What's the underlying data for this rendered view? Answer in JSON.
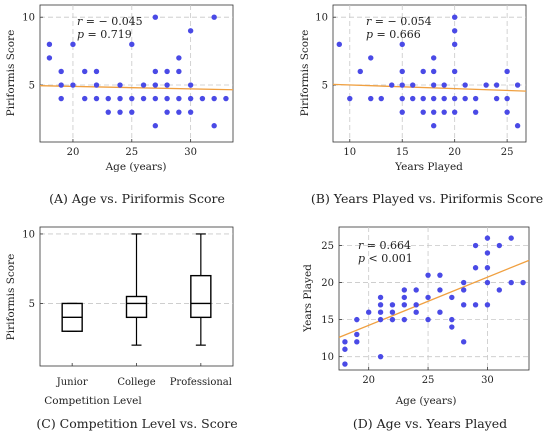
{
  "chart_data": [
    {
      "type": "scatter",
      "caption": "(A) Age vs. Piriformis Score",
      "xlabel": "Age (years)",
      "ylabel": "Piriformis Score",
      "xlim": [
        17.2,
        33.6
      ],
      "ylim": [
        0.8,
        10.9
      ],
      "xticks": [
        20,
        25,
        30
      ],
      "yticks": [
        5,
        10
      ],
      "grid": true,
      "stats": {
        "r_label": "r",
        "r_value": "= − 0.045",
        "p_label": "p",
        "p_value": "= 0.719"
      },
      "trend": {
        "x": [
          17.2,
          33.6
        ],
        "y": [
          4.95,
          4.65
        ]
      },
      "colors": {
        "points": "#4a4ae6",
        "trend": "#f0a040"
      },
      "points": [
        [
          18,
          8
        ],
        [
          18,
          7
        ],
        [
          19,
          6
        ],
        [
          19,
          5
        ],
        [
          19,
          4
        ],
        [
          20,
          8
        ],
        [
          20,
          5
        ],
        [
          21,
          6
        ],
        [
          21,
          4
        ],
        [
          22,
          6
        ],
        [
          22,
          5
        ],
        [
          22,
          4
        ],
        [
          23,
          4
        ],
        [
          23,
          3
        ],
        [
          24,
          5
        ],
        [
          24,
          4
        ],
        [
          24,
          3
        ],
        [
          25,
          4
        ],
        [
          25,
          3
        ],
        [
          25,
          8
        ],
        [
          26,
          5
        ],
        [
          26,
          4
        ],
        [
          27,
          10
        ],
        [
          27,
          6
        ],
        [
          27,
          5
        ],
        [
          27,
          4
        ],
        [
          27,
          2
        ],
        [
          28,
          6
        ],
        [
          28,
          5
        ],
        [
          28,
          4
        ],
        [
          28,
          3
        ],
        [
          29,
          7
        ],
        [
          29,
          6
        ],
        [
          29,
          4
        ],
        [
          29,
          3
        ],
        [
          30,
          9
        ],
        [
          30,
          5
        ],
        [
          30,
          4
        ],
        [
          30,
          3
        ],
        [
          31,
          4
        ],
        [
          32,
          10
        ],
        [
          32,
          4
        ],
        [
          32,
          2
        ],
        [
          33,
          4
        ]
      ]
    },
    {
      "type": "scatter",
      "caption": "(B) Years Played vs. Piriformis Score",
      "xlabel": "Years Played",
      "ylabel": "Piriformis Score",
      "xlim": [
        8.4,
        26.8
      ],
      "ylim": [
        0.8,
        10.9
      ],
      "xticks": [
        10,
        15,
        20,
        25
      ],
      "yticks": [
        5,
        10
      ],
      "grid": true,
      "stats": {
        "r_label": "r",
        "r_value": "= − 0.054",
        "p_label": "p",
        "p_value": "= 0.666"
      },
      "trend": {
        "x": [
          8.4,
          26.8
        ],
        "y": [
          5.05,
          4.55
        ]
      },
      "colors": {
        "points": "#4a4ae6",
        "trend": "#f0a040"
      },
      "points": [
        [
          9,
          8
        ],
        [
          10,
          4
        ],
        [
          11,
          6
        ],
        [
          12,
          7
        ],
        [
          12,
          4
        ],
        [
          13,
          4
        ],
        [
          14,
          5
        ],
        [
          15,
          8
        ],
        [
          15,
          6
        ],
        [
          15,
          5
        ],
        [
          15,
          4
        ],
        [
          15,
          3
        ],
        [
          16,
          5
        ],
        [
          16,
          4
        ],
        [
          17,
          6
        ],
        [
          17,
          4
        ],
        [
          17,
          3
        ],
        [
          18,
          7
        ],
        [
          18,
          6
        ],
        [
          18,
          5
        ],
        [
          18,
          4
        ],
        [
          18,
          3
        ],
        [
          18,
          2
        ],
        [
          19,
          5
        ],
        [
          19,
          4
        ],
        [
          19,
          3
        ],
        [
          20,
          10
        ],
        [
          20,
          9
        ],
        [
          20,
          8
        ],
        [
          20,
          6
        ],
        [
          20,
          4
        ],
        [
          20,
          3
        ],
        [
          21,
          5
        ],
        [
          21,
          4
        ],
        [
          22,
          4
        ],
        [
          22,
          3
        ],
        [
          23,
          5
        ],
        [
          24,
          5
        ],
        [
          24,
          4
        ],
        [
          25,
          6
        ],
        [
          25,
          4
        ],
        [
          25,
          3
        ],
        [
          26,
          5
        ],
        [
          26,
          2
        ]
      ]
    },
    {
      "type": "box",
      "caption": "(C) Competition Level vs. Score",
      "xlabel": "Competition Level",
      "ylabel": "Piriformis Score",
      "ylim": [
        0.5,
        10.5
      ],
      "yticks": [
        5,
        10
      ],
      "grid": true,
      "categories": [
        "Junior",
        "College",
        "Professional"
      ],
      "boxes": [
        {
          "min": 3,
          "q1": 3,
          "median": 4,
          "q3": 5,
          "max": 5
        },
        {
          "min": 2,
          "q1": 4,
          "median": 5,
          "q3": 5.5,
          "max": 10
        },
        {
          "min": 2,
          "q1": 4,
          "median": 5,
          "q3": 7,
          "max": 10
        }
      ]
    },
    {
      "type": "scatter",
      "caption": "(D) Age vs. Years Played",
      "xlabel": "Age (years)",
      "ylabel": "Years Played",
      "xlim": [
        17.5,
        33.5
      ],
      "ylim": [
        8.2,
        27.5
      ],
      "xticks": [
        20,
        25,
        30
      ],
      "yticks": [
        10,
        15,
        20,
        25
      ],
      "grid": true,
      "stats": {
        "r_label": "r",
        "r_value": "= 0.664",
        "p_label": "p",
        "p_value": "< 0.001"
      },
      "trend": {
        "x": [
          17.5,
          33.5
        ],
        "y": [
          12.6,
          23.0
        ]
      },
      "colors": {
        "points": "#4a4ae6",
        "trend": "#f0a040"
      },
      "points": [
        [
          18,
          9
        ],
        [
          18,
          12
        ],
        [
          18,
          11
        ],
        [
          19,
          13
        ],
        [
          19,
          12
        ],
        [
          19,
          15
        ],
        [
          20,
          16
        ],
        [
          21,
          16
        ],
        [
          21,
          17
        ],
        [
          21,
          15
        ],
        [
          21,
          18
        ],
        [
          21,
          10
        ],
        [
          22,
          15
        ],
        [
          22,
          16
        ],
        [
          22,
          17
        ],
        [
          23,
          15
        ],
        [
          23,
          17
        ],
        [
          23,
          19
        ],
        [
          23,
          18
        ],
        [
          24,
          17
        ],
        [
          24,
          19
        ],
        [
          24,
          16
        ],
        [
          25,
          18
        ],
        [
          25,
          21
        ],
        [
          25,
          15
        ],
        [
          26,
          19
        ],
        [
          26,
          16
        ],
        [
          26,
          21
        ],
        [
          27,
          18
        ],
        [
          27,
          15
        ],
        [
          27,
          14
        ],
        [
          28,
          12
        ],
        [
          28,
          17
        ],
        [
          28,
          19
        ],
        [
          28,
          20
        ],
        [
          29,
          22
        ],
        [
          29,
          25
        ],
        [
          29,
          17
        ],
        [
          30,
          26
        ],
        [
          30,
          24
        ],
        [
          30,
          22
        ],
        [
          30,
          20
        ],
        [
          30,
          17
        ],
        [
          31,
          19
        ],
        [
          31,
          25
        ],
        [
          32,
          26
        ],
        [
          32,
          20
        ],
        [
          33,
          20
        ]
      ]
    }
  ]
}
